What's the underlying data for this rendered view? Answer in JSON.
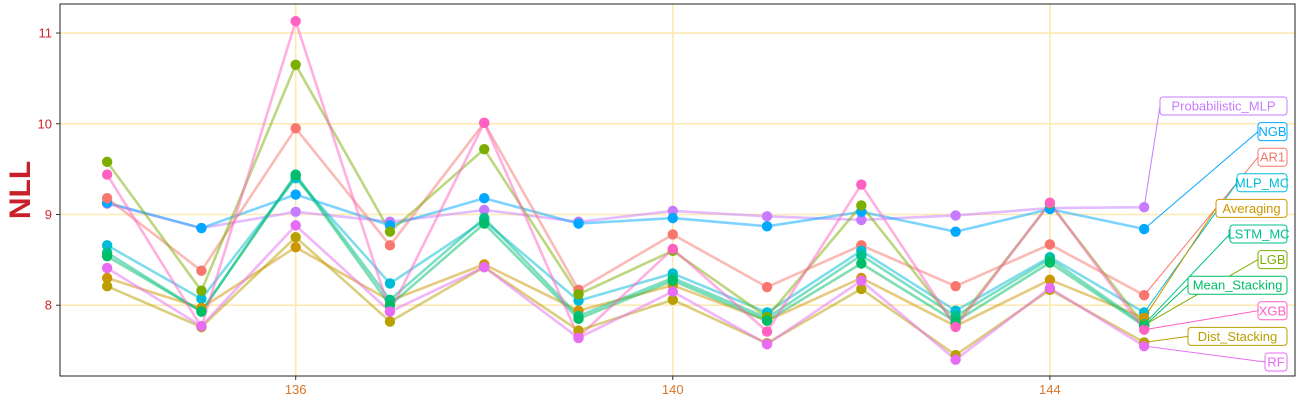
{
  "chart_data": {
    "type": "line",
    "ylabel": "NLL",
    "xlabel": "",
    "x": [
      134,
      135,
      136,
      137,
      138,
      139,
      140,
      141,
      142,
      143,
      144,
      145
    ],
    "xlim": [
      133.5,
      146.6
    ],
    "ylim": [
      7.22,
      11.32
    ],
    "xticks": [
      136,
      140,
      144
    ],
    "yticks": [
      8,
      9,
      10,
      11
    ],
    "grid": true,
    "legend": "direct labels at right end of lines",
    "colors": {
      "grid": "#fde9b3",
      "tick_x": "#d8762b",
      "tick_y": "#d0252d",
      "ylabel": "#c8202a",
      "axis": "#222222"
    },
    "series": [
      {
        "name": "Probabilistic_MLP",
        "color": "#c77cff",
        "values": [
          9.12,
          8.85,
          9.03,
          8.92,
          9.05,
          8.92,
          9.04,
          8.98,
          8.94,
          8.99,
          9.07,
          9.08
        ]
      },
      {
        "name": "NGB",
        "color": "#00a9ff",
        "values": [
          9.13,
          8.85,
          9.22,
          8.88,
          9.18,
          8.9,
          8.96,
          8.87,
          9.03,
          8.81,
          9.06,
          8.84
        ]
      },
      {
        "name": "AR1",
        "color": "#f8766d",
        "values": [
          9.18,
          8.38,
          9.95,
          8.66,
          10.01,
          8.17,
          8.78,
          8.2,
          8.66,
          8.21,
          8.67,
          8.11
        ]
      },
      {
        "name": "MLP_MC",
        "color": "#00bcd8",
        "values": [
          8.66,
          8.07,
          9.4,
          8.24,
          8.93,
          8.05,
          8.35,
          7.92,
          8.6,
          7.94,
          8.53,
          7.92
        ]
      },
      {
        "name": "Averaging",
        "color": "#cd9600",
        "values": [
          8.3,
          7.97,
          8.64,
          8.05,
          8.45,
          7.94,
          8.22,
          7.83,
          8.3,
          7.77,
          8.28,
          7.86
        ]
      },
      {
        "name": "LSTM_MC",
        "color": "#00c08b",
        "values": [
          8.58,
          7.93,
          9.44,
          8.06,
          8.96,
          7.88,
          8.3,
          7.86,
          8.55,
          7.88,
          8.51,
          7.79
        ]
      },
      {
        "name": "LGB",
        "color": "#7cae00",
        "values": [
          9.58,
          8.16,
          10.65,
          8.81,
          9.72,
          8.12,
          8.6,
          7.87,
          9.1,
          7.79,
          9.12,
          7.78
        ]
      },
      {
        "name": "Mean_Stacking",
        "color": "#00be67",
        "values": [
          8.54,
          7.93,
          9.43,
          8.0,
          8.9,
          7.85,
          8.27,
          7.83,
          8.46,
          7.82,
          8.47,
          7.77
        ]
      },
      {
        "name": "XGB",
        "color": "#ff61c3",
        "values": [
          9.44,
          7.76,
          11.13,
          7.93,
          10.01,
          7.65,
          8.62,
          7.71,
          9.33,
          7.76,
          9.13,
          7.73
        ]
      },
      {
        "name": "Dist_Stacking",
        "color": "#b8a000",
        "values": [
          8.21,
          7.76,
          8.75,
          7.82,
          8.42,
          7.72,
          8.06,
          7.58,
          8.18,
          7.45,
          8.17,
          7.59
        ]
      },
      {
        "name": "RF",
        "color": "#e76bf3",
        "values": [
          8.41,
          7.77,
          8.88,
          7.93,
          8.42,
          7.64,
          8.15,
          7.57,
          8.27,
          7.4,
          8.19,
          7.55
        ]
      }
    ],
    "label_order": [
      "Probabilistic_MLP",
      "NGB",
      "AR1",
      "MLP_MC",
      "Averaging",
      "LSTM_MC",
      "LGB",
      "Mean_Stacking",
      "XGB",
      "Dist_Stacking",
      "RF"
    ]
  }
}
